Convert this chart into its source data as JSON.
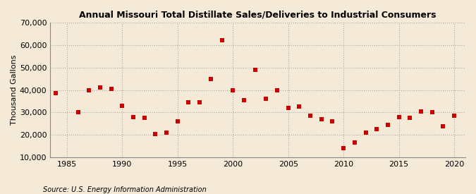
{
  "title": "Annual Missouri Total Distillate Sales/Deliveries to Industrial Consumers",
  "ylabel": "Thousand Gallons",
  "source": "Source: U.S. Energy Information Administration",
  "background_color": "#f5ead8",
  "plot_background_color": "#f5ead8",
  "marker_color": "#cc0000",
  "marker": "s",
  "marker_size": 5,
  "xlim": [
    1983.5,
    2021
  ],
  "ylim": [
    10000,
    70000
  ],
  "xticks": [
    1985,
    1990,
    1995,
    2000,
    2005,
    2010,
    2015,
    2020
  ],
  "yticks": [
    10000,
    20000,
    30000,
    40000,
    50000,
    60000,
    70000
  ],
  "years": [
    1984,
    1986,
    1987,
    1988,
    1989,
    1990,
    1991,
    1992,
    1993,
    1994,
    1995,
    1996,
    1997,
    1998,
    1999,
    2000,
    2001,
    2002,
    2003,
    2004,
    2005,
    2006,
    2007,
    2008,
    2009,
    2010,
    2011,
    2012,
    2013,
    2014,
    2015,
    2016,
    2017,
    2018,
    2019,
    2020
  ],
  "values": [
    38500,
    30000,
    40000,
    41000,
    40500,
    33000,
    28000,
    27500,
    20500,
    21000,
    26000,
    34500,
    34500,
    45000,
    62000,
    40000,
    35500,
    49000,
    36000,
    40000,
    32000,
    32500,
    28500,
    27000,
    26000,
    14000,
    16500,
    21000,
    22500,
    24500,
    28000,
    27500,
    30500,
    30000,
    24000,
    28500
  ]
}
